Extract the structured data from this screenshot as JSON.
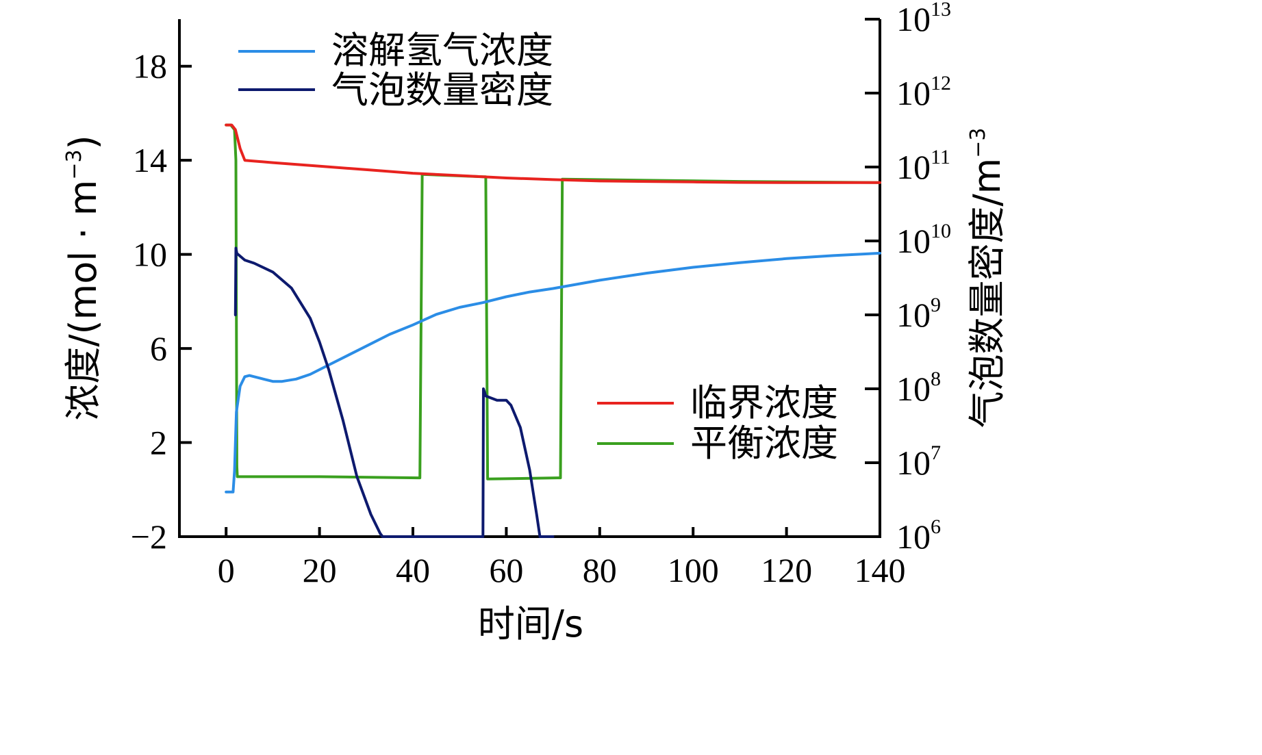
{
  "chart_data": {
    "type": "line",
    "xlabel": "时间/s",
    "ylabel_left": "浓度/(mol · m",
    "ylabel_left_sup": "−3",
    "ylabel_left_close": ")",
    "ylabel_right": "气泡数量密度/m",
    "ylabel_right_sup": "−3",
    "xlim": [
      -10,
      140
    ],
    "ylim_left": [
      -2,
      20
    ],
    "ylim_right": [
      1000000,
      10000000000000
    ],
    "yscale_right": "log",
    "x_ticks": [
      0,
      20,
      40,
      60,
      80,
      100,
      120,
      140
    ],
    "x_tick_labels": [
      "0",
      "20",
      "40",
      "60",
      "80",
      "100",
      "120",
      "140"
    ],
    "y_left_ticks": [
      -2,
      2,
      6,
      10,
      14,
      18
    ],
    "y_left_tick_labels": [
      "−2",
      "2",
      "6",
      "10",
      "14",
      "18"
    ],
    "y_right_tick_exponents": [
      6,
      7,
      8,
      9,
      10,
      11,
      12,
      13
    ],
    "y_right_tick_base": "10",
    "grid": false,
    "legend_top": {
      "placement": "top-left",
      "entries": [
        0,
        1
      ]
    },
    "legend_bottom": {
      "placement": "bottom-right",
      "entries": [
        2,
        3
      ]
    },
    "series": [
      {
        "name": "溶解氢气浓度",
        "axis": "left",
        "color": "#2b8de6",
        "x": [
          0,
          1.5,
          1.8,
          2.2,
          3,
          4,
          5,
          6,
          8,
          10,
          12,
          15,
          18,
          22,
          26,
          30,
          35,
          40,
          45,
          50,
          55,
          60,
          65,
          70,
          80,
          90,
          100,
          110,
          120,
          130,
          140
        ],
        "y": [
          -0.1,
          -0.1,
          0.8,
          3.3,
          4.4,
          4.8,
          4.85,
          4.8,
          4.7,
          4.6,
          4.6,
          4.7,
          4.9,
          5.3,
          5.7,
          6.1,
          6.6,
          7.0,
          7.45,
          7.75,
          7.95,
          8.2,
          8.4,
          8.55,
          8.9,
          9.2,
          9.45,
          9.65,
          9.82,
          9.95,
          10.05
        ]
      },
      {
        "name": "气泡数量密度",
        "axis": "right",
        "color": "#0d1a6e",
        "x": [
          2,
          2.1,
          2.3,
          4,
          6,
          10,
          14,
          18,
          20,
          22,
          25,
          28,
          31,
          33,
          33.5,
          55,
          55.1,
          55.6,
          58,
          60,
          61,
          63,
          65,
          66.5,
          67.2,
          68,
          70
        ],
        "y": [
          1000000000,
          8000000000,
          6800000000,
          5500000000,
          5000000000,
          3800000000,
          2300000000,
          900000000,
          430000000,
          180000000,
          38000000,
          6500000,
          2000000,
          1100000,
          1000000,
          1000000,
          100000000,
          80000000,
          70000000,
          70000000,
          60000000,
          30000000,
          8000000,
          2000000,
          1000000,
          1000000,
          1000000
        ]
      },
      {
        "name": "临界浓度",
        "axis": "left",
        "color": "#e8231f",
        "x": [
          0,
          1.2,
          2,
          3,
          4,
          10,
          20,
          30,
          40,
          50,
          60,
          70,
          80,
          90,
          100,
          110,
          120,
          130,
          140
        ],
        "y": [
          15.5,
          15.5,
          15.3,
          14.5,
          14.0,
          13.9,
          13.75,
          13.6,
          13.45,
          13.35,
          13.25,
          13.18,
          13.12,
          13.1,
          13.08,
          13.06,
          13.05,
          13.05,
          13.05
        ]
      },
      {
        "name": "平衡浓度",
        "axis": "left",
        "color": "#3aa01f",
        "x": [
          0,
          1.0,
          1.8,
          2.1,
          2.3,
          2.4,
          20,
          41,
          41.5,
          42,
          55,
          55.6,
          56,
          71,
          71.6,
          72,
          90,
          110,
          140
        ],
        "y": [
          15.5,
          15.5,
          15.3,
          14.0,
          1.0,
          0.55,
          0.55,
          0.5,
          0.5,
          13.4,
          13.3,
          13.3,
          0.45,
          0.5,
          0.5,
          13.2,
          13.15,
          13.1,
          13.05
        ]
      }
    ]
  }
}
